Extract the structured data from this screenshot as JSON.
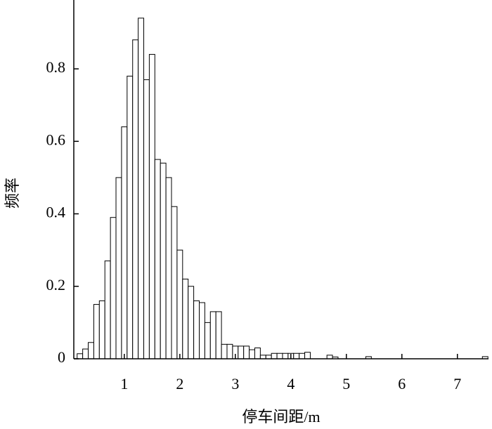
{
  "chart_data": {
    "type": "histogram",
    "x_label": "停车间距/m",
    "y_label": "频率",
    "bins": [
      0.15,
      0.25,
      0.35,
      0.45,
      0.55,
      0.65,
      0.75,
      0.85,
      0.95,
      1.05,
      1.15,
      1.25,
      1.35,
      1.45,
      1.55,
      1.65,
      1.75,
      1.85,
      1.95,
      2.05,
      2.15,
      2.25,
      2.35,
      2.45,
      2.55,
      2.65,
      2.75,
      2.85,
      2.95,
      3.05,
      3.15,
      3.25,
      3.35,
      3.45,
      3.55,
      3.65,
      3.75,
      3.85,
      3.95,
      4.05,
      4.15,
      4.25,
      4.35,
      4.45,
      4.55,
      4.65,
      4.75,
      4.85,
      4.95,
      5.05,
      5.15,
      5.25,
      5.35,
      5.45,
      5.55,
      5.65,
      5.75,
      5.85,
      5.95,
      6.05,
      6.15,
      6.25,
      6.35,
      6.45,
      6.55,
      6.65,
      6.75,
      6.85,
      6.95,
      7.05,
      7.15,
      7.25,
      7.35,
      7.45,
      7.55
    ],
    "values": [
      0.014,
      0.027,
      0.045,
      0.15,
      0.16,
      0.27,
      0.39,
      0.5,
      0.64,
      0.78,
      0.88,
      0.94,
      0.77,
      0.84,
      0.55,
      0.54,
      0.5,
      0.42,
      0.3,
      0.22,
      0.2,
      0.16,
      0.155,
      0.1,
      0.13,
      0.13,
      0.04,
      0.04,
      0.035,
      0.035,
      0.035,
      0.025,
      0.03,
      0.01,
      0.01,
      0.015,
      0.015,
      0.015,
      0.015,
      0.015,
      0.015,
      0.018,
      0,
      0,
      0,
      0.01,
      0.005,
      0,
      0,
      0,
      0,
      0,
      0.006,
      0,
      0,
      0,
      0,
      0,
      0,
      0,
      0,
      0,
      0,
      0,
      0,
      0,
      0,
      0,
      0,
      0,
      0,
      0,
      0,
      0.006
    ],
    "color": "#ffffff",
    "edgecolor": "#000000",
    "xlim": [
      0.09,
      7.56
    ],
    "xticks": [
      1,
      2,
      3,
      4,
      5,
      6,
      7
    ],
    "ylim": [
      0,
      0.99
    ],
    "yticks": [
      0,
      0.2,
      0.4,
      0.6,
      0.8
    ]
  }
}
